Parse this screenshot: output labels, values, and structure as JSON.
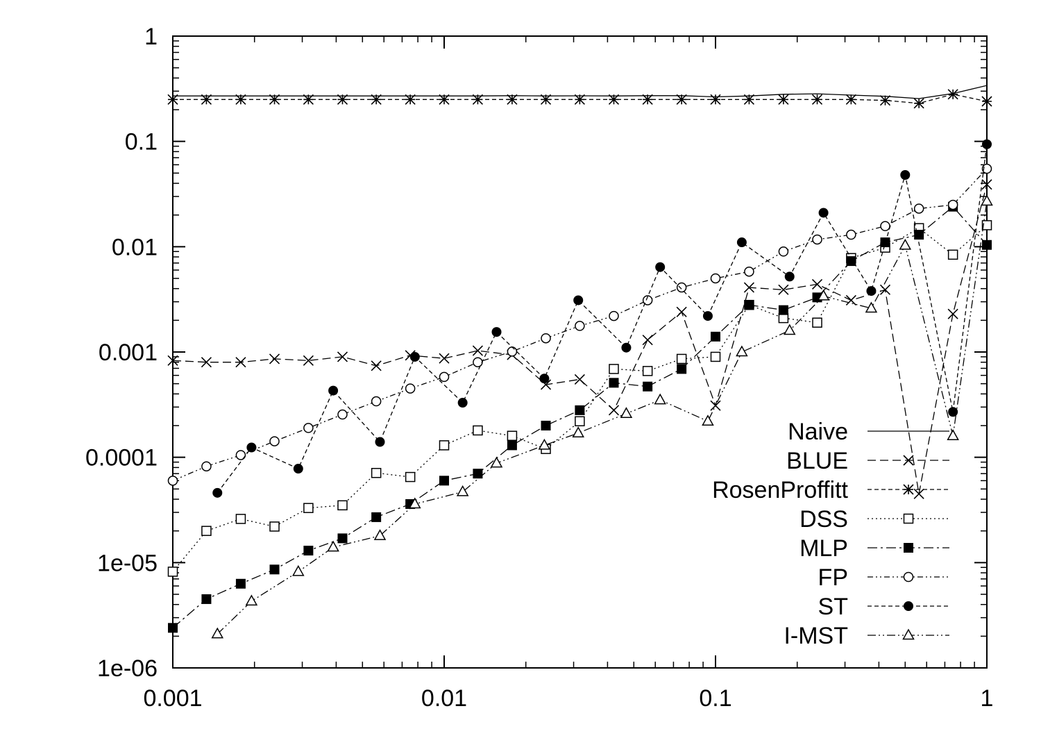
{
  "chart_data": {
    "type": "line",
    "title": "",
    "xlabel": "",
    "ylabel": "",
    "xscale": "log",
    "yscale": "log",
    "xlim": [
      0.001,
      1
    ],
    "ylim": [
      1e-06,
      1
    ],
    "grid": false,
    "legend_position": "bottom-right",
    "x_ticks": [
      {
        "value": 0.001,
        "label": "0.001"
      },
      {
        "value": 0.01,
        "label": "0.01"
      },
      {
        "value": 0.1,
        "label": "0.1"
      },
      {
        "value": 1,
        "label": "1"
      }
    ],
    "y_ticks": [
      {
        "value": 1,
        "label": "1"
      },
      {
        "value": 0.1,
        "label": "0.1"
      },
      {
        "value": 0.01,
        "label": "0.01"
      },
      {
        "value": 0.001,
        "label": "0.001"
      },
      {
        "value": 0.0001,
        "label": "0.0001"
      },
      {
        "value": 1e-05,
        "label": "1e-05"
      },
      {
        "value": 1e-06,
        "label": "1e-06"
      }
    ],
    "series": [
      {
        "name": "Naive",
        "marker": "none",
        "dash": "",
        "points": [
          [
            0.001,
            0.27
          ],
          [
            0.00133,
            0.27
          ],
          [
            0.00178,
            0.27
          ],
          [
            0.00237,
            0.27
          ],
          [
            0.00316,
            0.27
          ],
          [
            0.00422,
            0.27
          ],
          [
            0.00562,
            0.27
          ],
          [
            0.0075,
            0.27
          ],
          [
            0.01,
            0.27
          ],
          [
            0.0133,
            0.27
          ],
          [
            0.0178,
            0.272
          ],
          [
            0.0237,
            0.27
          ],
          [
            0.0316,
            0.271
          ],
          [
            0.0422,
            0.27
          ],
          [
            0.0562,
            0.272
          ],
          [
            0.075,
            0.272
          ],
          [
            0.1,
            0.265
          ],
          [
            0.133,
            0.27
          ],
          [
            0.178,
            0.28
          ],
          [
            0.237,
            0.283
          ],
          [
            0.316,
            0.275
          ],
          [
            0.422,
            0.268
          ],
          [
            0.562,
            0.255
          ],
          [
            0.75,
            0.285
          ],
          [
            1,
            0.34
          ]
        ]
      },
      {
        "name": "BLUE",
        "marker": "x",
        "dash": "12 6",
        "points": [
          [
            0.001,
            0.00083
          ],
          [
            0.00133,
            0.0008
          ],
          [
            0.00178,
            0.0008
          ],
          [
            0.00237,
            0.00086
          ],
          [
            0.00316,
            0.00083
          ],
          [
            0.00422,
            0.0009
          ],
          [
            0.00562,
            0.00074
          ],
          [
            0.0075,
            0.00093
          ],
          [
            0.01,
            0.00087
          ],
          [
            0.0133,
            0.00103
          ],
          [
            0.0178,
            0.00094
          ],
          [
            0.0237,
            0.00049
          ],
          [
            0.0316,
            0.00055
          ],
          [
            0.0422,
            0.00028
          ],
          [
            0.0562,
            0.0013
          ],
          [
            0.075,
            0.0024
          ],
          [
            0.1,
            0.00031
          ],
          [
            0.133,
            0.0041
          ],
          [
            0.178,
            0.0039
          ],
          [
            0.237,
            0.0044
          ],
          [
            0.316,
            0.0031
          ],
          [
            0.422,
            0.0039
          ],
          [
            0.562,
            4.5e-05
          ],
          [
            0.75,
            0.0023
          ],
          [
            1,
            0.039
          ]
        ]
      },
      {
        "name": "RosenProffitt",
        "marker": "star",
        "dash": "6 4",
        "points": [
          [
            0.001,
            0.25
          ],
          [
            0.00133,
            0.25
          ],
          [
            0.00178,
            0.25
          ],
          [
            0.00237,
            0.25
          ],
          [
            0.00316,
            0.25
          ],
          [
            0.00422,
            0.25
          ],
          [
            0.00562,
            0.25
          ],
          [
            0.0075,
            0.25
          ],
          [
            0.01,
            0.25
          ],
          [
            0.0133,
            0.25
          ],
          [
            0.0178,
            0.25
          ],
          [
            0.0237,
            0.25
          ],
          [
            0.0316,
            0.25
          ],
          [
            0.0422,
            0.25
          ],
          [
            0.0562,
            0.25
          ],
          [
            0.075,
            0.25
          ],
          [
            0.1,
            0.25
          ],
          [
            0.133,
            0.25
          ],
          [
            0.178,
            0.25
          ],
          [
            0.237,
            0.25
          ],
          [
            0.316,
            0.25
          ],
          [
            0.422,
            0.245
          ],
          [
            0.562,
            0.23
          ],
          [
            0.75,
            0.28
          ],
          [
            1,
            0.24
          ]
        ]
      },
      {
        "name": "DSS",
        "marker": "square-open",
        "dash": "2 4",
        "points": [
          [
            0.001,
            8.2e-06
          ],
          [
            0.00133,
            2e-05
          ],
          [
            0.00178,
            2.6e-05
          ],
          [
            0.00237,
            2.2e-05
          ],
          [
            0.00316,
            3.3e-05
          ],
          [
            0.00422,
            3.5e-05
          ],
          [
            0.00562,
            7.1e-05
          ],
          [
            0.0075,
            6.5e-05
          ],
          [
            0.01,
            0.00013
          ],
          [
            0.0133,
            0.00018
          ],
          [
            0.0178,
            0.00016
          ],
          [
            0.0237,
            0.00012
          ],
          [
            0.0316,
            0.00022
          ],
          [
            0.0422,
            0.00069
          ],
          [
            0.0562,
            0.00066
          ],
          [
            0.075,
            0.00086
          ],
          [
            0.1,
            0.0009
          ],
          [
            0.133,
            0.0028
          ],
          [
            0.178,
            0.0021
          ],
          [
            0.237,
            0.0019
          ],
          [
            0.316,
            0.0078
          ],
          [
            0.422,
            0.0098
          ],
          [
            0.562,
            0.015
          ],
          [
            0.75,
            0.0084
          ],
          [
            1,
            0.016
          ]
        ]
      },
      {
        "name": "MLP",
        "marker": "square-filled",
        "dash": "14 5 3 5",
        "points": [
          [
            0.001,
            2.4e-06
          ],
          [
            0.00133,
            4.5e-06
          ],
          [
            0.00178,
            6.3e-06
          ],
          [
            0.00237,
            8.6e-06
          ],
          [
            0.00316,
            1.3e-05
          ],
          [
            0.00422,
            1.7e-05
          ],
          [
            0.00562,
            2.7e-05
          ],
          [
            0.0075,
            3.6e-05
          ],
          [
            0.01,
            6e-05
          ],
          [
            0.0133,
            7e-05
          ],
          [
            0.0178,
            0.00013
          ],
          [
            0.0237,
            0.0002
          ],
          [
            0.0316,
            0.00028
          ],
          [
            0.0422,
            0.00051
          ],
          [
            0.0562,
            0.00047
          ],
          [
            0.075,
            0.00069
          ],
          [
            0.1,
            0.0014
          ],
          [
            0.133,
            0.0028
          ],
          [
            0.178,
            0.0025
          ],
          [
            0.237,
            0.0033
          ],
          [
            0.316,
            0.0073
          ],
          [
            0.422,
            0.011
          ],
          [
            0.562,
            0.013
          ],
          [
            0.75,
            0.024
          ],
          [
            1,
            0.0104
          ]
        ]
      },
      {
        "name": "FP",
        "marker": "circle-open",
        "dash": "8 4 2 4 2 4",
        "points": [
          [
            0.001,
            6e-05
          ],
          [
            0.00133,
            8.2e-05
          ],
          [
            0.00178,
            0.000105
          ],
          [
            0.00237,
            0.000142
          ],
          [
            0.00316,
            0.00019
          ],
          [
            0.00422,
            0.000255
          ],
          [
            0.00562,
            0.00034
          ],
          [
            0.0075,
            0.00045
          ],
          [
            0.01,
            0.00058
          ],
          [
            0.0133,
            0.0008
          ],
          [
            0.0178,
            0.00101
          ],
          [
            0.0237,
            0.00135
          ],
          [
            0.0316,
            0.00177
          ],
          [
            0.0422,
            0.0022
          ],
          [
            0.0562,
            0.0031
          ],
          [
            0.075,
            0.0041
          ],
          [
            0.1,
            0.005
          ],
          [
            0.133,
            0.0058
          ],
          [
            0.178,
            0.009
          ],
          [
            0.237,
            0.0117
          ],
          [
            0.316,
            0.013
          ],
          [
            0.422,
            0.0157
          ],
          [
            0.562,
            0.023
          ],
          [
            0.75,
            0.025
          ],
          [
            1,
            0.055
          ]
        ]
      },
      {
        "name": "ST",
        "marker": "circle-filled",
        "dash": "6 4",
        "points": [
          [
            0.00146,
            4.6e-05
          ],
          [
            0.00195,
            0.000124
          ],
          [
            0.0029,
            7.8e-05
          ],
          [
            0.0039,
            0.00043
          ],
          [
            0.0058,
            0.00014
          ],
          [
            0.0078,
            0.0009
          ],
          [
            0.0117,
            0.00033
          ],
          [
            0.0156,
            0.00155
          ],
          [
            0.0234,
            0.00056
          ],
          [
            0.0312,
            0.0031
          ],
          [
            0.0469,
            0.0011
          ],
          [
            0.0625,
            0.0064
          ],
          [
            0.0937,
            0.0022
          ],
          [
            0.125,
            0.011
          ],
          [
            0.1875,
            0.0052
          ],
          [
            0.25,
            0.021
          ],
          [
            0.375,
            0.0038
          ],
          [
            0.5,
            0.048
          ],
          [
            0.75,
            0.00027
          ],
          [
            1,
            0.094
          ]
        ]
      },
      {
        "name": "I-MST",
        "marker": "triangle-open",
        "dash": "12 4 2 4 2 4",
        "points": [
          [
            0.00146,
            2.1e-06
          ],
          [
            0.00195,
            4.3e-06
          ],
          [
            0.0029,
            8.2e-06
          ],
          [
            0.0039,
            1.4e-05
          ],
          [
            0.0058,
            1.8e-05
          ],
          [
            0.0078,
            3.6e-05
          ],
          [
            0.0117,
            4.7e-05
          ],
          [
            0.0156,
            8.8e-05
          ],
          [
            0.0234,
            0.00013
          ],
          [
            0.0312,
            0.00017
          ],
          [
            0.0469,
            0.00026
          ],
          [
            0.0625,
            0.00035
          ],
          [
            0.0937,
            0.00022
          ],
          [
            0.125,
            0.001
          ],
          [
            0.1875,
            0.0016
          ],
          [
            0.25,
            0.0034
          ],
          [
            0.375,
            0.0026
          ],
          [
            0.5,
            0.0103
          ],
          [
            0.75,
            0.00016
          ],
          [
            1,
            0.027
          ]
        ]
      }
    ]
  }
}
